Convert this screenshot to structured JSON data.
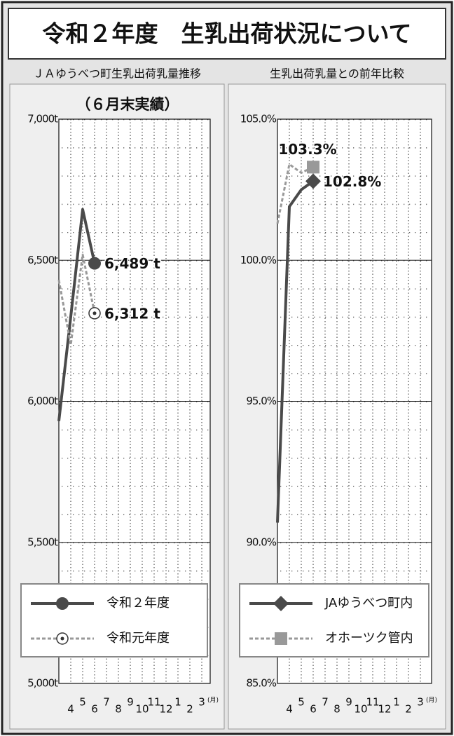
{
  "title": "令和２年度　生乳出荷状況について",
  "chart_data": [
    {
      "type": "line",
      "title": "ＪＡゆうべつ町生乳出荷乳量推移",
      "subtitle": "（６月末実績）",
      "categories": [
        null,
        "4",
        "5",
        "6",
        "7",
        "8",
        "9",
        "10",
        "11",
        "12",
        "1",
        "2",
        "3"
      ],
      "x_unit_label": "(月)",
      "ylim": [
        5000,
        7000
      ],
      "yticks": [
        {
          "value": 5000,
          "label": "5,000t"
        },
        {
          "value": 5500,
          "label": "5,500t"
        },
        {
          "value": 6000,
          "label": "6,000t"
        },
        {
          "value": 6500,
          "label": "6,500t"
        },
        {
          "value": 7000,
          "label": "7,000t"
        }
      ],
      "legend": "lower left",
      "series": [
        {
          "name": "令和２年度",
          "color": "#4a4a4a",
          "line_style": "solid",
          "marker": "circle",
          "values": [
            5930,
            6300,
            6680,
            6489,
            null,
            null,
            null,
            null,
            null,
            null,
            null,
            null,
            null
          ],
          "value_labels": [
            null,
            null,
            null,
            "6,489 t",
            null,
            null,
            null,
            null,
            null,
            null,
            null,
            null,
            null
          ]
        },
        {
          "name": "令和元年度",
          "color": "#999999",
          "line_style": "dashed",
          "marker": "bullseye",
          "values": [
            6430,
            6200,
            6520,
            6312,
            null,
            null,
            null,
            null,
            null,
            null,
            null,
            null,
            null
          ],
          "value_labels": [
            null,
            null,
            null,
            "6,312 t",
            null,
            null,
            null,
            null,
            null,
            null,
            null,
            null,
            null
          ]
        }
      ]
    },
    {
      "type": "line",
      "title": "生乳出荷乳量との前年比較",
      "categories": [
        null,
        "4",
        "5",
        "6",
        "7",
        "8",
        "9",
        "10",
        "11",
        "12",
        "1",
        "2",
        "3"
      ],
      "x_unit_label": "(月)",
      "ylim": [
        85,
        105
      ],
      "yticks": [
        {
          "value": 85,
          "label": "85.0%"
        },
        {
          "value": 90,
          "label": "90.0%"
        },
        {
          "value": 95,
          "label": "95.0%"
        },
        {
          "value": 100,
          "label": "100.0%"
        },
        {
          "value": 105,
          "label": "105.0%"
        }
      ],
      "legend": "lower left",
      "series": [
        {
          "name": "JAゆうべつ町内",
          "color": "#4a4a4a",
          "line_style": "solid",
          "marker": "diamond",
          "values": [
            90.7,
            101.9,
            102.5,
            102.8,
            null,
            null,
            null,
            null,
            null,
            null,
            null,
            null,
            null
          ],
          "value_labels": [
            null,
            null,
            null,
            "102.8%",
            null,
            null,
            null,
            null,
            null,
            null,
            null,
            null,
            null
          ]
        },
        {
          "name": "オホーツク管内",
          "color": "#999999",
          "line_style": "dashed",
          "marker": "square",
          "values": [
            101.3,
            103.4,
            103.1,
            103.3,
            null,
            null,
            null,
            null,
            null,
            null,
            null,
            null,
            null
          ],
          "value_labels": [
            null,
            null,
            null,
            "103.3%",
            null,
            null,
            null,
            null,
            null,
            null,
            null,
            null,
            null
          ]
        }
      ]
    }
  ]
}
